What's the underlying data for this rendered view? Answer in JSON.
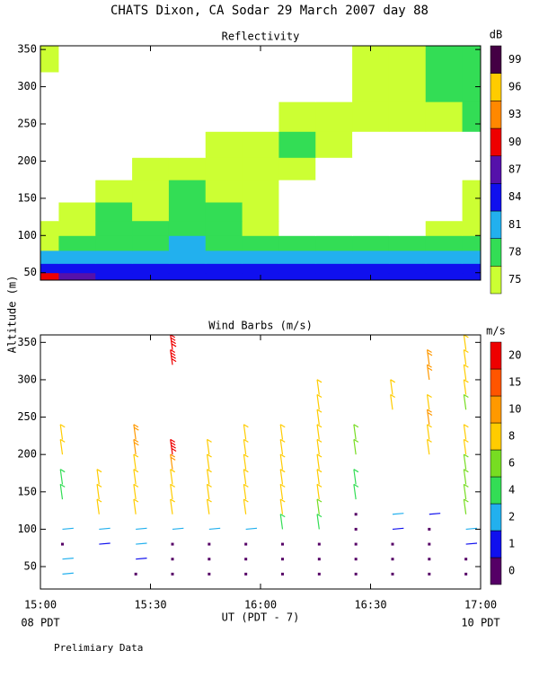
{
  "title": "CHATS Dixon, CA   Sodar  29 March 2007   day  88",
  "footnote": "Prelimiary Data",
  "ylabel": "Altitude (m)",
  "chart_data": [
    {
      "type": "contour",
      "title": "Reflectivity",
      "colorbar_label": "dB",
      "x": [
        900,
        910,
        920,
        930,
        940,
        950,
        960,
        970,
        980,
        990,
        1000,
        1010,
        1020
      ],
      "y": [
        45,
        55,
        70,
        90,
        110,
        130,
        160,
        190,
        220,
        260,
        300,
        340
      ],
      "z": [
        [
          91,
          88,
          86,
          85,
          85,
          85,
          85,
          85,
          85,
          85,
          85,
          86,
          85
        ],
        [
          86,
          85,
          85,
          84,
          84,
          84,
          84,
          84,
          84,
          84,
          84,
          84,
          84
        ],
        [
          82,
          82,
          82,
          82,
          83,
          82,
          81,
          81,
          81,
          81,
          81,
          81,
          81
        ],
        [
          77,
          79,
          79,
          80,
          82,
          80,
          79,
          78,
          78,
          78,
          78,
          79,
          80
        ],
        [
          76,
          77,
          78,
          78,
          79,
          78,
          76,
          74,
          72,
          72,
          72,
          75,
          77
        ],
        [
          72,
          76,
          78,
          77,
          78,
          78,
          76,
          73,
          70,
          70,
          70,
          73,
          76
        ],
        [
          70,
          72,
          75,
          76,
          78,
          77,
          76,
          74,
          70,
          70,
          70,
          72,
          75
        ],
        [
          70,
          70,
          72,
          75,
          76,
          77,
          76,
          76,
          74,
          70,
          70,
          70,
          70
        ],
        [
          70,
          70,
          70,
          70,
          72,
          75,
          76,
          79,
          76,
          73,
          70,
          70,
          70
        ],
        [
          70,
          70,
          70,
          70,
          70,
          70,
          74,
          76,
          76,
          76,
          75,
          76,
          78
        ],
        [
          70,
          70,
          70,
          70,
          70,
          70,
          70,
          72,
          74,
          76,
          77,
          80,
          79
        ],
        [
          76,
          70,
          70,
          70,
          70,
          70,
          70,
          70,
          70,
          75,
          77,
          78,
          80
        ]
      ],
      "levels": [
        75,
        78,
        81,
        84,
        87,
        90,
        93,
        96,
        99
      ],
      "colors": [
        "#ccff33",
        "#33dd55",
        "#22b0ee",
        "#1010ee",
        "#5511aa",
        "#ee0000",
        "#ff8800",
        "#ffcc00",
        "#440044"
      ],
      "xlim": [
        900,
        1020
      ],
      "ylim": [
        40,
        355
      ],
      "xticks": [
        900,
        930,
        960,
        990,
        1020
      ],
      "yticks": [
        50,
        100,
        150,
        200,
        250,
        300,
        350
      ]
    },
    {
      "type": "barbs",
      "title": "Wind Barbs (m/s)",
      "colorbar_label": "m/s",
      "xlabel": "UT  (PDT - 7)",
      "x_left_note": "08 PDT",
      "x_right_note": "10 PDT",
      "barbs": [
        {
          "time": 906,
          "altitude": 40,
          "speed": 2
        },
        {
          "time": 906,
          "altitude": 60,
          "speed": 2
        },
        {
          "time": 906,
          "altitude": 80,
          "speed": 0
        },
        {
          "time": 906,
          "altitude": 100,
          "speed": 2
        },
        {
          "time": 906,
          "altitude": 140,
          "speed": 5
        },
        {
          "time": 906,
          "altitude": 160,
          "speed": 5
        },
        {
          "time": 906,
          "altitude": 200,
          "speed": 9
        },
        {
          "time": 906,
          "altitude": 220,
          "speed": 9
        },
        {
          "time": 916,
          "altitude": 80,
          "speed": 1
        },
        {
          "time": 916,
          "altitude": 100,
          "speed": 2
        },
        {
          "time": 916,
          "altitude": 120,
          "speed": 9
        },
        {
          "time": 916,
          "altitude": 140,
          "speed": 9
        },
        {
          "time": 916,
          "altitude": 160,
          "speed": 9
        },
        {
          "time": 926,
          "altitude": 40,
          "speed": 0
        },
        {
          "time": 926,
          "altitude": 60,
          "speed": 1
        },
        {
          "time": 926,
          "altitude": 80,
          "speed": 2
        },
        {
          "time": 926,
          "altitude": 100,
          "speed": 3
        },
        {
          "time": 926,
          "altitude": 120,
          "speed": 9
        },
        {
          "time": 926,
          "altitude": 140,
          "speed": 9
        },
        {
          "time": 926,
          "altitude": 160,
          "speed": 9
        },
        {
          "time": 926,
          "altitude": 180,
          "speed": 9
        },
        {
          "time": 926,
          "altitude": 200,
          "speed": 10
        },
        {
          "time": 926,
          "altitude": 220,
          "speed": 10
        },
        {
          "time": 936,
          "altitude": 40,
          "speed": 0
        },
        {
          "time": 936,
          "altitude": 60,
          "speed": 0
        },
        {
          "time": 936,
          "altitude": 80,
          "speed": 0
        },
        {
          "time": 936,
          "altitude": 100,
          "speed": 3
        },
        {
          "time": 936,
          "altitude": 120,
          "speed": 9
        },
        {
          "time": 936,
          "altitude": 140,
          "speed": 9
        },
        {
          "time": 936,
          "altitude": 160,
          "speed": 9
        },
        {
          "time": 936,
          "altitude": 180,
          "speed": 10
        },
        {
          "time": 936,
          "altitude": 200,
          "speed": 20
        },
        {
          "time": 936,
          "altitude": 320,
          "speed": 20
        },
        {
          "time": 936,
          "altitude": 340,
          "speed": 20
        },
        {
          "time": 946,
          "altitude": 40,
          "speed": 0
        },
        {
          "time": 946,
          "altitude": 60,
          "speed": 0
        },
        {
          "time": 946,
          "altitude": 80,
          "speed": 0
        },
        {
          "time": 946,
          "altitude": 100,
          "speed": 3
        },
        {
          "time": 946,
          "altitude": 120,
          "speed": 9
        },
        {
          "time": 946,
          "altitude": 140,
          "speed": 9
        },
        {
          "time": 946,
          "altitude": 160,
          "speed": 9
        },
        {
          "time": 946,
          "altitude": 180,
          "speed": 9
        },
        {
          "time": 946,
          "altitude": 200,
          "speed": 9
        },
        {
          "time": 956,
          "altitude": 40,
          "speed": 0
        },
        {
          "time": 956,
          "altitude": 60,
          "speed": 0
        },
        {
          "time": 956,
          "altitude": 80,
          "speed": 0
        },
        {
          "time": 956,
          "altitude": 100,
          "speed": 3
        },
        {
          "time": 956,
          "altitude": 120,
          "speed": 9
        },
        {
          "time": 956,
          "altitude": 140,
          "speed": 9
        },
        {
          "time": 956,
          "altitude": 160,
          "speed": 9
        },
        {
          "time": 956,
          "altitude": 180,
          "speed": 9
        },
        {
          "time": 956,
          "altitude": 200,
          "speed": 9
        },
        {
          "time": 956,
          "altitude": 220,
          "speed": 9
        },
        {
          "time": 966,
          "altitude": 40,
          "speed": 0
        },
        {
          "time": 966,
          "altitude": 60,
          "speed": 0
        },
        {
          "time": 966,
          "altitude": 80,
          "speed": 0
        },
        {
          "time": 966,
          "altitude": 100,
          "speed": 5
        },
        {
          "time": 966,
          "altitude": 120,
          "speed": 8
        },
        {
          "time": 966,
          "altitude": 140,
          "speed": 9
        },
        {
          "time": 966,
          "altitude": 160,
          "speed": 9
        },
        {
          "time": 966,
          "altitude": 180,
          "speed": 9
        },
        {
          "time": 966,
          "altitude": 200,
          "speed": 9
        },
        {
          "time": 966,
          "altitude": 220,
          "speed": 9
        },
        {
          "time": 976,
          "altitude": 40,
          "speed": 0
        },
        {
          "time": 976,
          "altitude": 60,
          "speed": 0
        },
        {
          "time": 976,
          "altitude": 80,
          "speed": 0
        },
        {
          "time": 976,
          "altitude": 100,
          "speed": 5
        },
        {
          "time": 976,
          "altitude": 120,
          "speed": 6
        },
        {
          "time": 976,
          "altitude": 140,
          "speed": 8
        },
        {
          "time": 976,
          "altitude": 160,
          "speed": 8
        },
        {
          "time": 976,
          "altitude": 180,
          "speed": 8
        },
        {
          "time": 976,
          "altitude": 200,
          "speed": 8
        },
        {
          "time": 976,
          "altitude": 220,
          "speed": 8
        },
        {
          "time": 976,
          "altitude": 240,
          "speed": 9
        },
        {
          "time": 976,
          "altitude": 260,
          "speed": 9
        },
        {
          "time": 976,
          "altitude": 280,
          "speed": 9
        },
        {
          "time": 986,
          "altitude": 40,
          "speed": 0
        },
        {
          "time": 986,
          "altitude": 60,
          "speed": 0
        },
        {
          "time": 986,
          "altitude": 80,
          "speed": 0
        },
        {
          "time": 986,
          "altitude": 100,
          "speed": 0
        },
        {
          "time": 986,
          "altitude": 120,
          "speed": 0
        },
        {
          "time": 986,
          "altitude": 140,
          "speed": 5
        },
        {
          "time": 986,
          "altitude": 160,
          "speed": 5
        },
        {
          "time": 986,
          "altitude": 200,
          "speed": 6
        },
        {
          "time": 986,
          "altitude": 220,
          "speed": 7
        },
        {
          "time": 996,
          "altitude": 40,
          "speed": 0
        },
        {
          "time": 996,
          "altitude": 60,
          "speed": 0
        },
        {
          "time": 996,
          "altitude": 80,
          "speed": 0
        },
        {
          "time": 996,
          "altitude": 100,
          "speed": 1
        },
        {
          "time": 996,
          "altitude": 120,
          "speed": 3
        },
        {
          "time": 996,
          "altitude": 260,
          "speed": 9
        },
        {
          "time": 996,
          "altitude": 280,
          "speed": 9
        },
        {
          "time": 1006,
          "altitude": 40,
          "speed": 0
        },
        {
          "time": 1006,
          "altitude": 60,
          "speed": 0
        },
        {
          "time": 1006,
          "altitude": 80,
          "speed": 0
        },
        {
          "time": 1006,
          "altitude": 100,
          "speed": 0
        },
        {
          "time": 1006,
          "altitude": 120,
          "speed": 1
        },
        {
          "time": 1006,
          "altitude": 200,
          "speed": 9
        },
        {
          "time": 1006,
          "altitude": 220,
          "speed": 9
        },
        {
          "time": 1006,
          "altitude": 240,
          "speed": 10
        },
        {
          "time": 1006,
          "altitude": 260,
          "speed": 9
        },
        {
          "time": 1006,
          "altitude": 300,
          "speed": 10
        },
        {
          "time": 1006,
          "altitude": 320,
          "speed": 10
        },
        {
          "time": 1016,
          "altitude": 40,
          "speed": 0
        },
        {
          "time": 1016,
          "altitude": 60,
          "speed": 0
        },
        {
          "time": 1016,
          "altitude": 80,
          "speed": 1
        },
        {
          "time": 1016,
          "altitude": 100,
          "speed": 3
        },
        {
          "time": 1016,
          "altitude": 120,
          "speed": 6
        },
        {
          "time": 1016,
          "altitude": 140,
          "speed": 6
        },
        {
          "time": 1016,
          "altitude": 160,
          "speed": 6
        },
        {
          "time": 1016,
          "altitude": 180,
          "speed": 7
        },
        {
          "time": 1016,
          "altitude": 200,
          "speed": 9
        },
        {
          "time": 1016,
          "altitude": 220,
          "speed": 9
        },
        {
          "time": 1016,
          "altitude": 260,
          "speed": 6
        },
        {
          "time": 1016,
          "altitude": 280,
          "speed": 9
        },
        {
          "time": 1016,
          "altitude": 300,
          "speed": 9
        },
        {
          "time": 1016,
          "altitude": 320,
          "speed": 9
        },
        {
          "time": 1016,
          "altitude": 340,
          "speed": 9
        }
      ],
      "levels": [
        0,
        1,
        2,
        4,
        6,
        8,
        10,
        15,
        20
      ],
      "colors": [
        "#550066",
        "#1010ee",
        "#22b0ee",
        "#33dd55",
        "#77dd22",
        "#ffcc00",
        "#ff9900",
        "#ff5500",
        "#ee0000"
      ],
      "xlim": [
        900,
        1020
      ],
      "ylim": [
        20,
        360
      ],
      "xticks": [
        {
          "value": 900,
          "label": "15:00"
        },
        {
          "value": 930,
          "label": "15:30"
        },
        {
          "value": 960,
          "label": "16:00"
        },
        {
          "value": 990,
          "label": "16:30"
        },
        {
          "value": 1020,
          "label": "17:00"
        }
      ],
      "yticks": [
        50,
        100,
        150,
        200,
        250,
        300,
        350
      ]
    }
  ]
}
